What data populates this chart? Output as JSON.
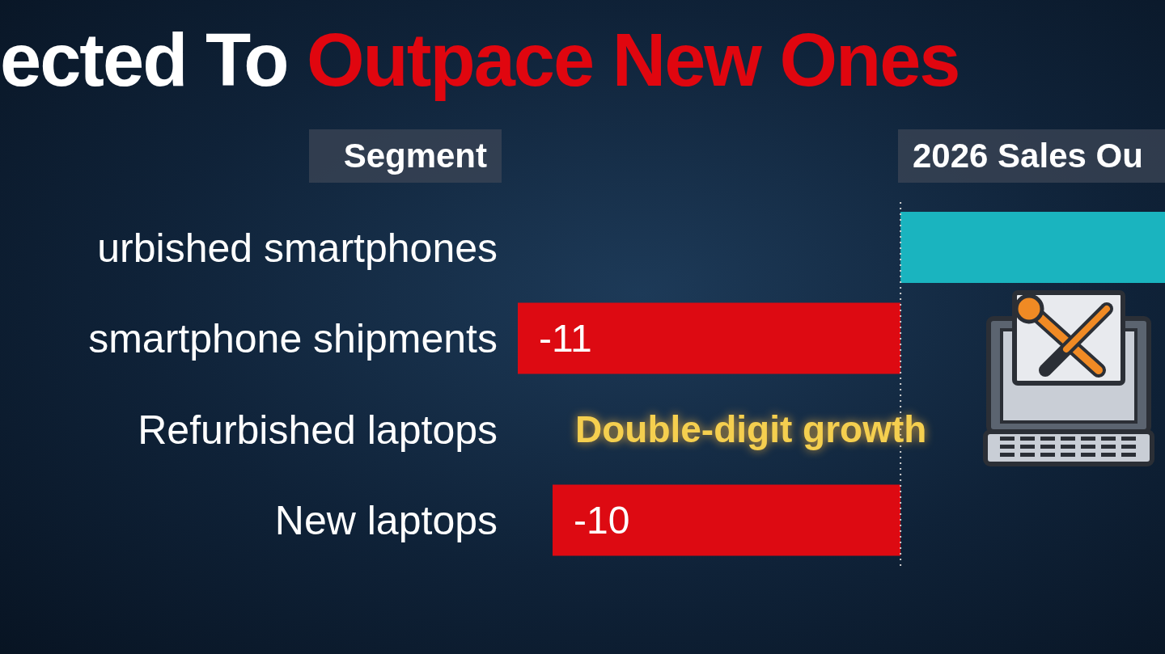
{
  "chart_data": {
    "type": "bar",
    "orientation": "horizontal",
    "title": "ected To Outpace New Ones",
    "ylabel": "Segment",
    "xlabel": "2026 Sales Ou",
    "categories": [
      "urbished smartphones",
      "smartphone shipments",
      "Refurbished laptops",
      "New laptops"
    ],
    "values": [
      7.6,
      -11,
      null,
      -10
    ],
    "colors": [
      "#1ab4bf",
      "#dd0a12",
      null,
      "#dd0a12"
    ],
    "value_labels": [
      null,
      "-11",
      null,
      "-10"
    ],
    "xlim": [
      -11,
      7.6
    ],
    "tick_labels": "y",
    "ref_lines": [
      {
        "axis": "x",
        "value": 0,
        "line_style": "dotted",
        "color": "#d0d0d0"
      }
    ],
    "annotations": [
      "Double-digit growth"
    ]
  }
}
